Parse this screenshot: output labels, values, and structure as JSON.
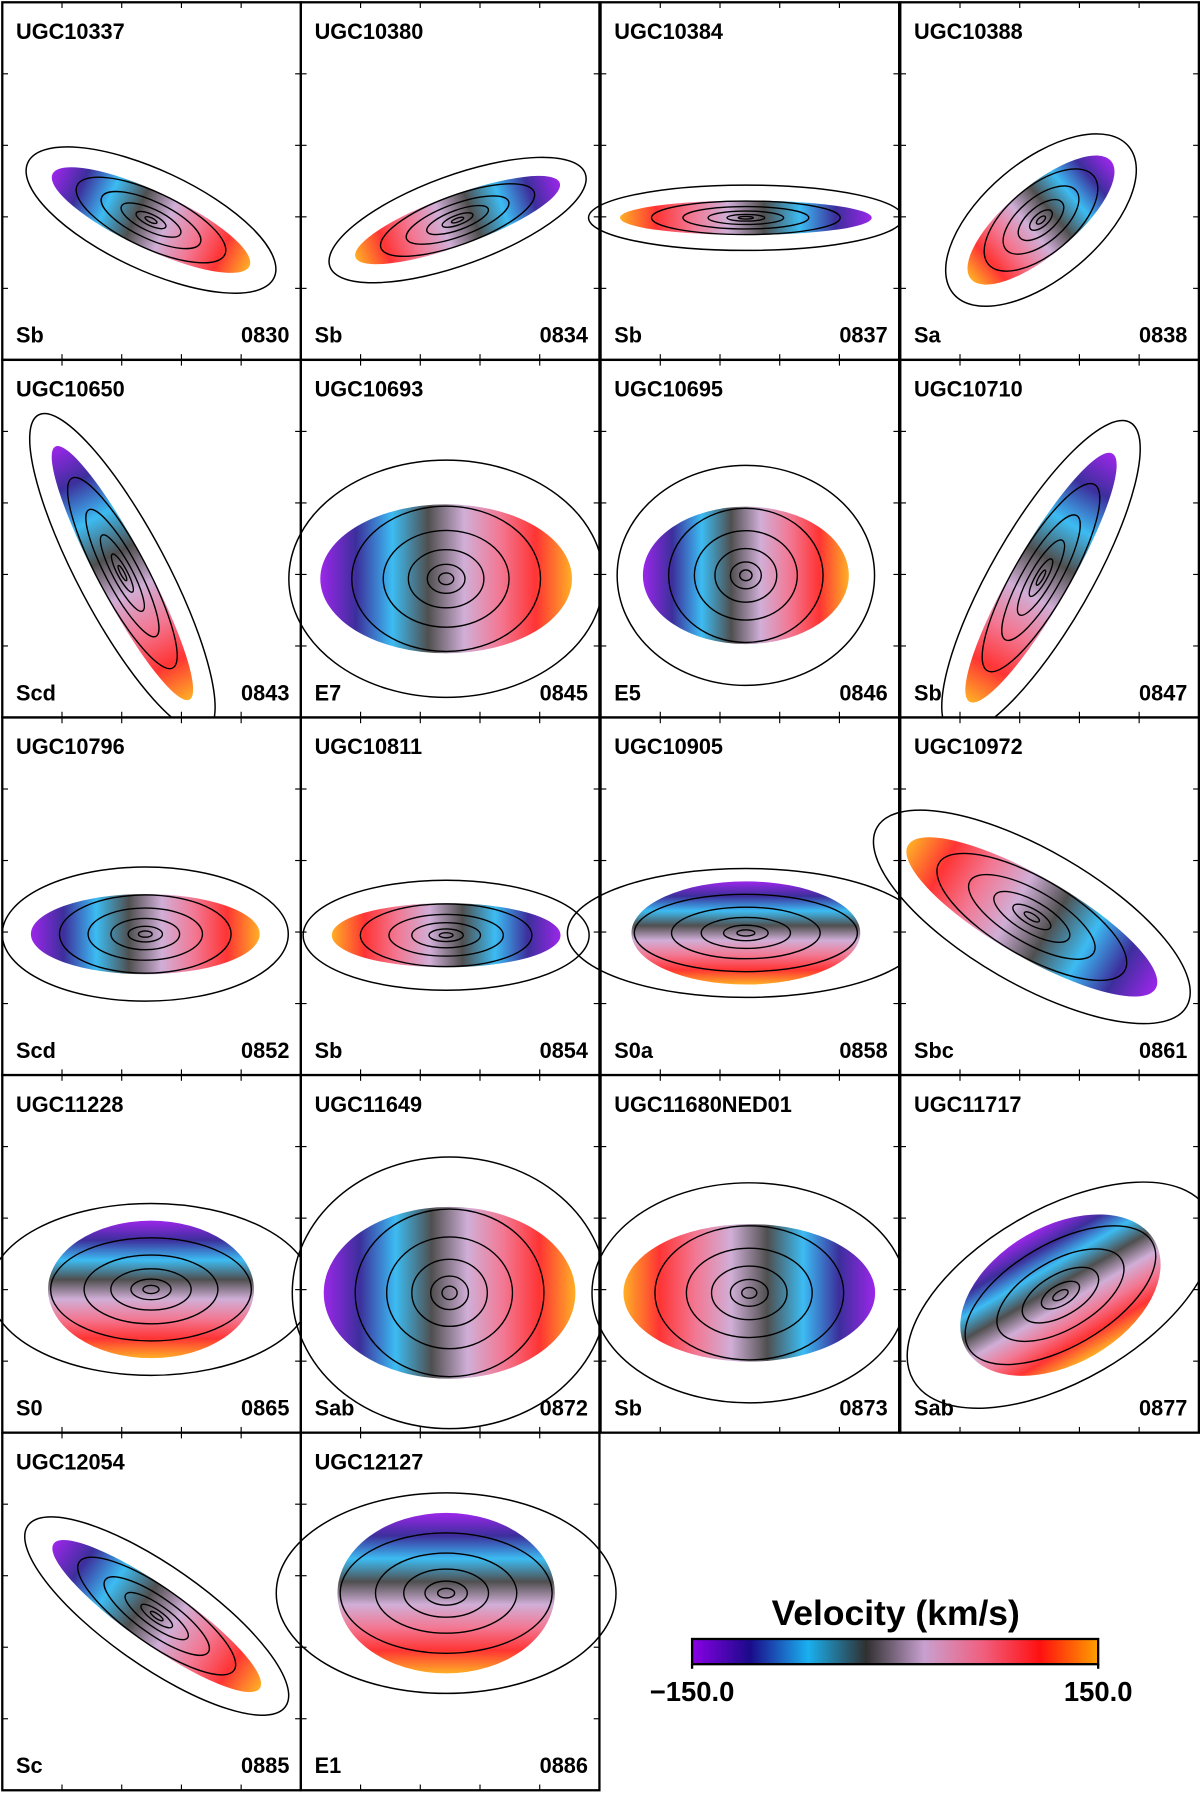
{
  "panels": [
    {
      "name": "UGC10337",
      "morphology": "Sb",
      "id": "0830"
    },
    {
      "name": "UGC10380",
      "morphology": "Sb",
      "id": "0834"
    },
    {
      "name": "UGC10384",
      "morphology": "Sb",
      "id": "0837"
    },
    {
      "name": "UGC10388",
      "morphology": "Sa",
      "id": "0838"
    },
    {
      "name": "UGC10650",
      "morphology": "Scd",
      "id": "0843"
    },
    {
      "name": "UGC10693",
      "morphology": "E7",
      "id": "0845"
    },
    {
      "name": "UGC10695",
      "morphology": "E5",
      "id": "0846"
    },
    {
      "name": "UGC10710",
      "morphology": "Sb",
      "id": "0847"
    },
    {
      "name": "UGC10796",
      "morphology": "Scd",
      "id": "0852"
    },
    {
      "name": "UGC10811",
      "morphology": "Sb",
      "id": "0854"
    },
    {
      "name": "UGC10905",
      "morphology": "S0a",
      "id": "0858"
    },
    {
      "name": "UGC10972",
      "morphology": "Sbc",
      "id": "0861"
    },
    {
      "name": "UGC11228",
      "morphology": "S0",
      "id": "0865"
    },
    {
      "name": "UGC11649",
      "morphology": "Sab",
      "id": "0872"
    },
    {
      "name": "UGC11680NED01",
      "morphology": "Sb",
      "id": "0873"
    },
    {
      "name": "UGC11717",
      "morphology": "Sab",
      "id": "0877"
    },
    {
      "name": "UGC12054",
      "morphology": "Sc",
      "id": "0885"
    },
    {
      "name": "UGC12127",
      "morphology": "E1",
      "id": "0886"
    }
  ],
  "colorbar": {
    "title": "Velocity (km/s)",
    "limits": [
      -150,
      150
    ],
    "ticks": [
      {
        "value": -150,
        "label": "−150.0"
      },
      {
        "value": 150,
        "label": "150.0"
      }
    ],
    "colors": [
      "#8a00e6",
      "#1a0a8a",
      "#1ab0f0",
      "#303030",
      "#c8a0d0",
      "#f06080",
      "#ff1010",
      "#ffa000"
    ]
  }
}
